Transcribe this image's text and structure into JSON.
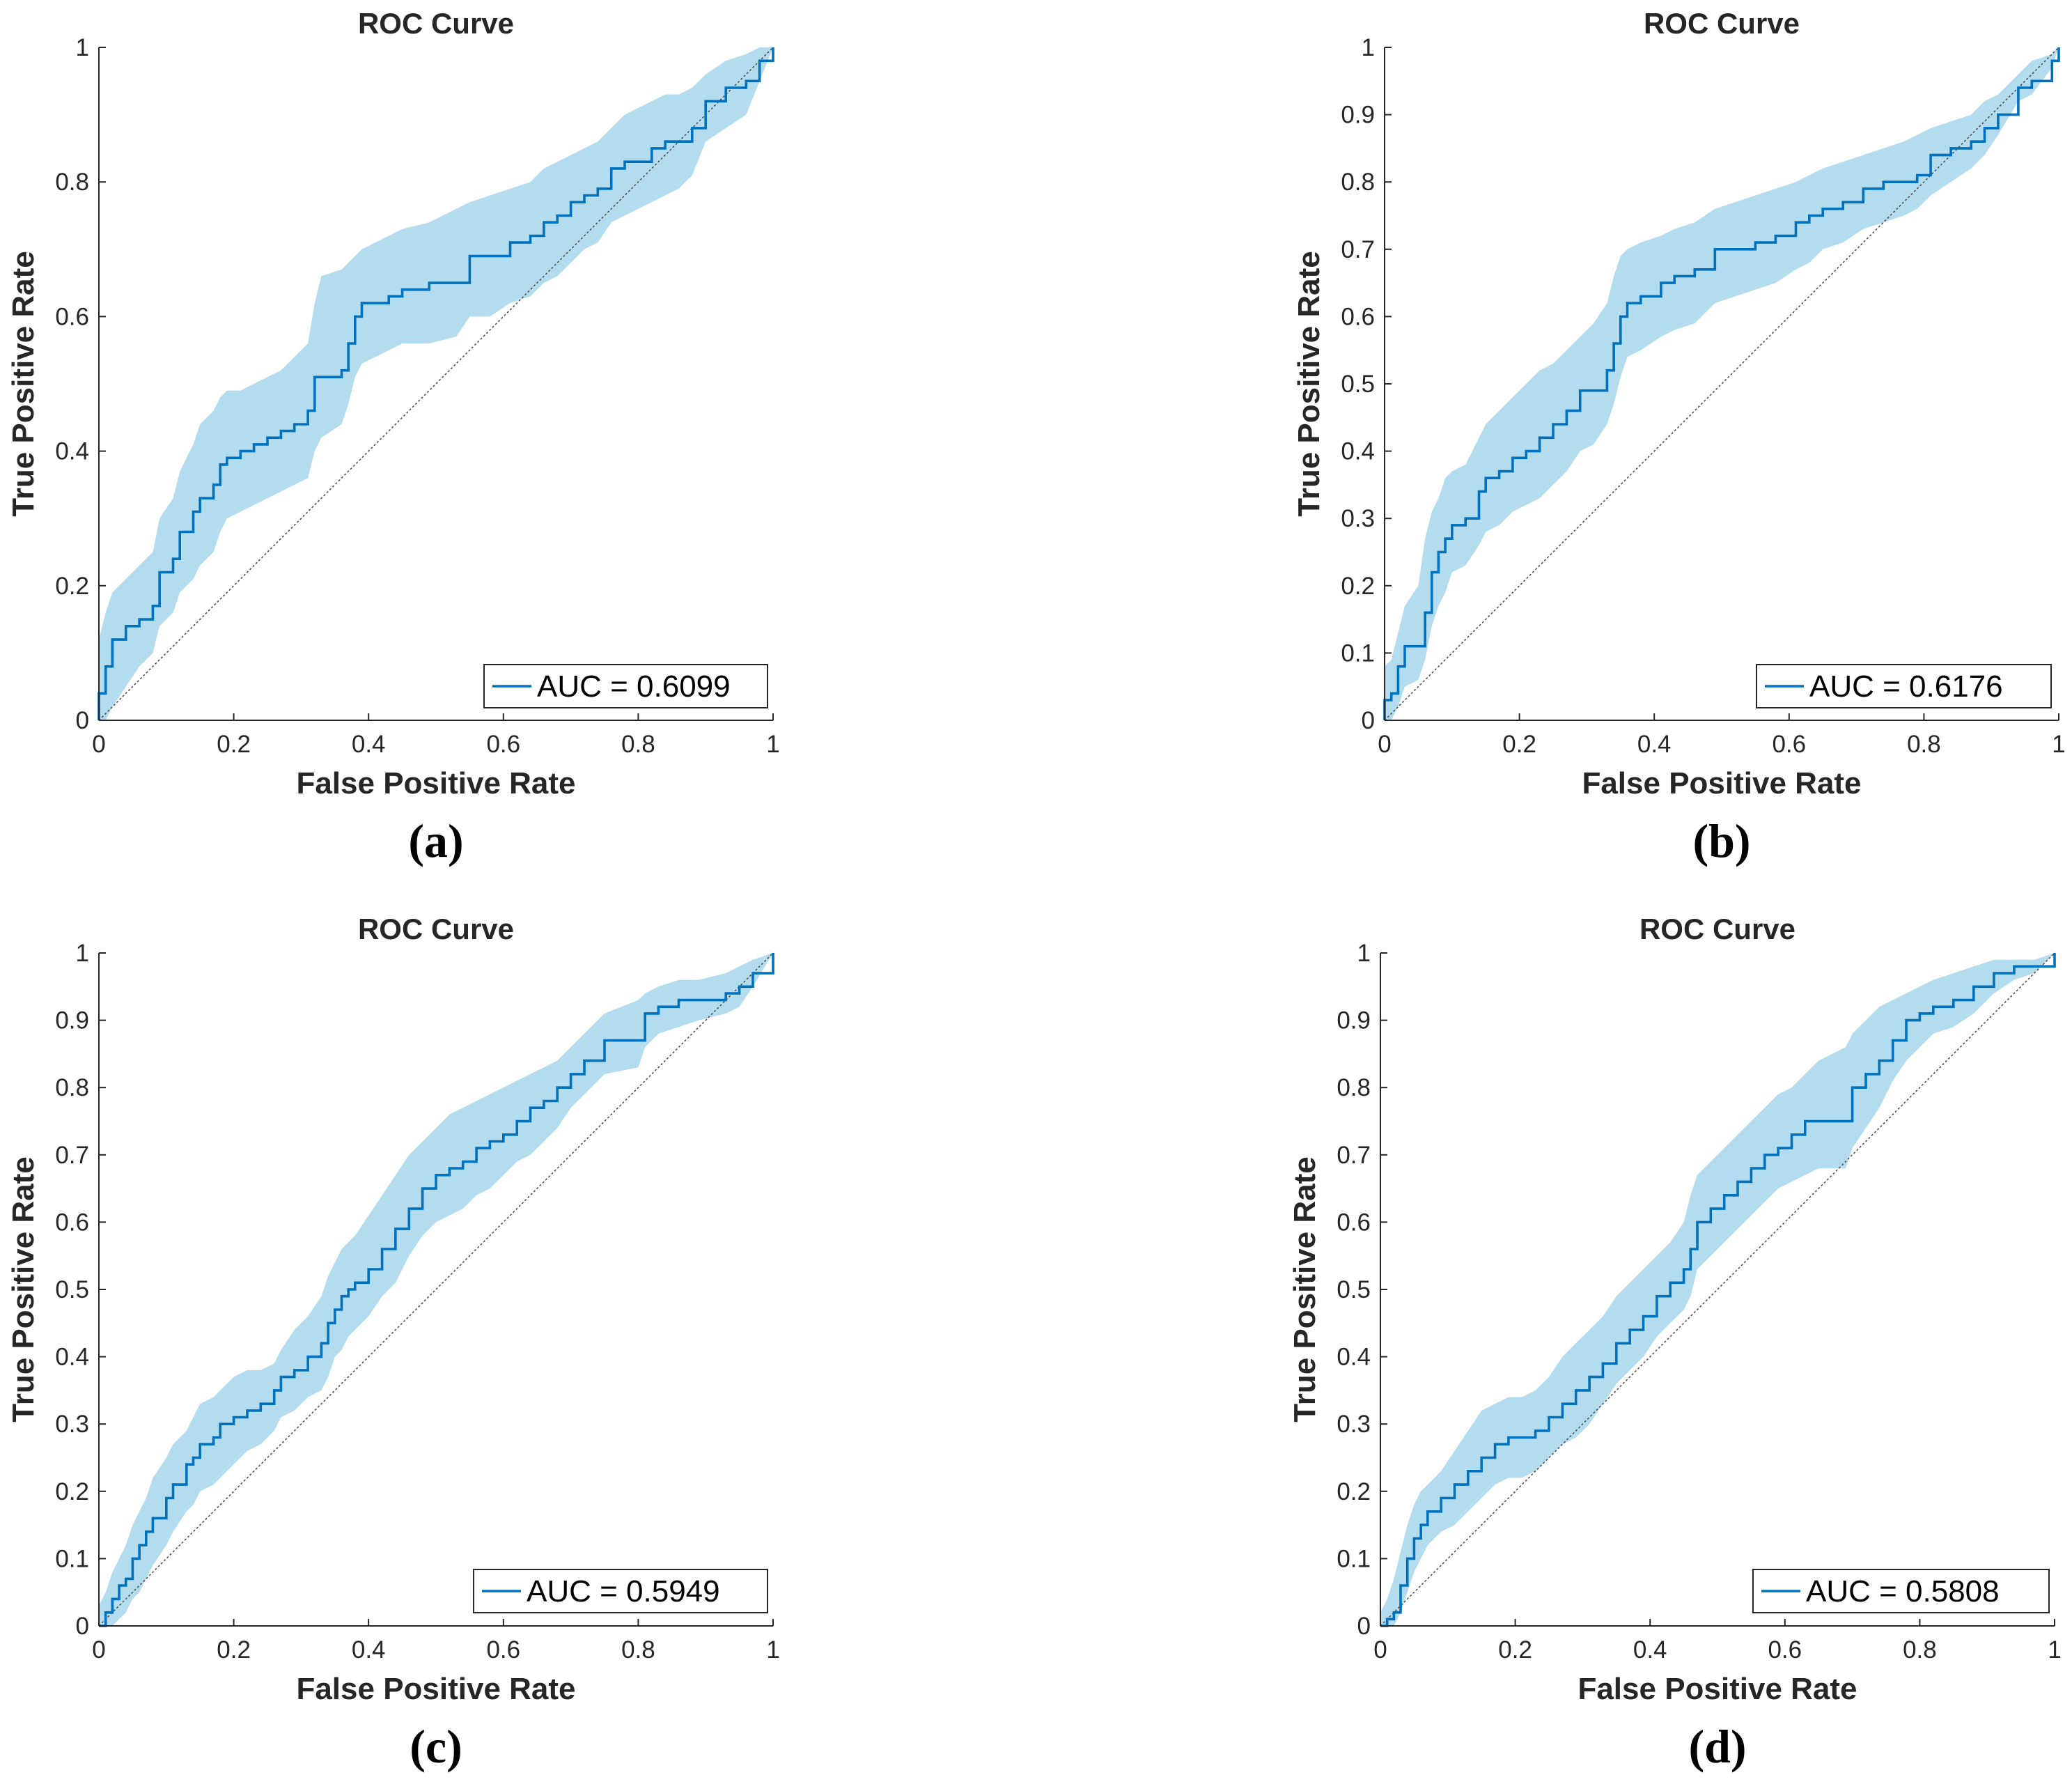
{
  "colors": {
    "curve": "#0072BD",
    "band": "#B4DCEF",
    "diagonal": "#4D4D4D",
    "axis": "#262626",
    "legend_border": "#262626"
  },
  "chart_data": [
    {
      "type": "line",
      "panel": "(a)",
      "title": "ROC Curve",
      "xlabel": "False Positive Rate",
      "ylabel": "True Positive Rate",
      "xlim": [
        0,
        1
      ],
      "ylim": [
        0,
        1
      ],
      "xticks": [
        0,
        0.2,
        0.4,
        0.6,
        0.8,
        1
      ],
      "xtick_labels": [
        "0",
        "0.2",
        "0.4",
        "0.6",
        "0.8",
        "1"
      ],
      "yticks": [
        0,
        0.2,
        0.4,
        0.6,
        0.8,
        1
      ],
      "ytick_labels": [
        "0",
        "0.2",
        "0.4",
        "0.6",
        "0.8",
        "1"
      ],
      "legend": "AUC = 0.6099",
      "legend_position": "bottom-right",
      "grid": false,
      "series": [
        {
          "name": "ROC",
          "x": [
            0,
            0,
            0.01,
            0.02,
            0.04,
            0.06,
            0.08,
            0.09,
            0.11,
            0.12,
            0.14,
            0.15,
            0.17,
            0.18,
            0.19,
            0.21,
            0.23,
            0.25,
            0.27,
            0.29,
            0.31,
            0.32,
            0.33,
            0.36,
            0.37,
            0.38,
            0.39,
            0.41,
            0.43,
            0.45,
            0.49,
            0.53,
            0.55,
            0.58,
            0.61,
            0.64,
            0.66,
            0.68,
            0.7,
            0.72,
            0.74,
            0.76,
            0.78,
            0.8,
            0.82,
            0.84,
            0.86,
            0.88,
            0.9,
            0.93,
            0.96,
            0.98,
            1
          ],
          "y": [
            0,
            0.04,
            0.08,
            0.12,
            0.14,
            0.15,
            0.17,
            0.22,
            0.24,
            0.28,
            0.31,
            0.33,
            0.35,
            0.38,
            0.39,
            0.4,
            0.41,
            0.42,
            0.43,
            0.44,
            0.46,
            0.51,
            0.51,
            0.52,
            0.56,
            0.6,
            0.62,
            0.62,
            0.63,
            0.64,
            0.65,
            0.65,
            0.69,
            0.69,
            0.71,
            0.72,
            0.74,
            0.75,
            0.77,
            0.78,
            0.79,
            0.82,
            0.83,
            0.83,
            0.85,
            0.86,
            0.86,
            0.88,
            0.92,
            0.94,
            0.95,
            0.98,
            1
          ],
          "upper": [
            0.08,
            0.12,
            0.16,
            0.19,
            0.21,
            0.23,
            0.25,
            0.3,
            0.33,
            0.37,
            0.41,
            0.44,
            0.46,
            0.48,
            0.49,
            0.49,
            0.5,
            0.51,
            0.52,
            0.54,
            0.56,
            0.62,
            0.66,
            0.67,
            0.68,
            0.69,
            0.7,
            0.71,
            0.72,
            0.73,
            0.74,
            0.76,
            0.77,
            0.78,
            0.79,
            0.8,
            0.82,
            0.83,
            0.84,
            0.85,
            0.86,
            0.88,
            0.9,
            0.91,
            0.92,
            0.93,
            0.93,
            0.94,
            0.96,
            0.98,
            0.99,
            1,
            1
          ],
          "lower": [
            0,
            0,
            0,
            0.02,
            0.05,
            0.08,
            0.1,
            0.14,
            0.16,
            0.19,
            0.21,
            0.23,
            0.25,
            0.28,
            0.3,
            0.31,
            0.32,
            0.33,
            0.34,
            0.35,
            0.36,
            0.4,
            0.42,
            0.44,
            0.47,
            0.51,
            0.53,
            0.54,
            0.55,
            0.56,
            0.56,
            0.57,
            0.6,
            0.6,
            0.62,
            0.63,
            0.65,
            0.66,
            0.68,
            0.7,
            0.71,
            0.74,
            0.75,
            0.76,
            0.77,
            0.78,
            0.79,
            0.81,
            0.86,
            0.88,
            0.9,
            0.95,
            1
          ]
        }
      ]
    },
    {
      "type": "line",
      "panel": "(b)",
      "title": "ROC Curve",
      "xlabel": "False Positive Rate",
      "ylabel": "True Positive Rate",
      "xlim": [
        0,
        1
      ],
      "ylim": [
        0,
        1
      ],
      "xticks": [
        0,
        0.2,
        0.4,
        0.6,
        0.8,
        1
      ],
      "xtick_labels": [
        "0",
        "0.2",
        "0.4",
        "0.6",
        "0.8",
        "1"
      ],
      "yticks": [
        0,
        0.1,
        0.2,
        0.3,
        0.4,
        0.5,
        0.6,
        0.7,
        0.8,
        0.9,
        1
      ],
      "ytick_labels": [
        "0",
        "0.1",
        "0.2",
        "0.3",
        "0.4",
        "0.5",
        "0.6",
        "0.7",
        "0.8",
        "0.9",
        "1"
      ],
      "legend": "AUC = 0.6176",
      "legend_position": "bottom-right",
      "grid": false,
      "series": [
        {
          "name": "ROC",
          "x": [
            0,
            0,
            0.01,
            0.02,
            0.03,
            0.05,
            0.06,
            0.07,
            0.08,
            0.09,
            0.1,
            0.12,
            0.14,
            0.15,
            0.17,
            0.19,
            0.21,
            0.23,
            0.25,
            0.27,
            0.29,
            0.31,
            0.33,
            0.34,
            0.35,
            0.36,
            0.38,
            0.41,
            0.43,
            0.46,
            0.49,
            0.52,
            0.55,
            0.58,
            0.61,
            0.63,
            0.65,
            0.68,
            0.71,
            0.74,
            0.77,
            0.79,
            0.81,
            0.84,
            0.87,
            0.89,
            0.91,
            0.94,
            0.96,
            0.99,
            1
          ],
          "y": [
            0,
            0.03,
            0.04,
            0.08,
            0.11,
            0.11,
            0.16,
            0.22,
            0.25,
            0.27,
            0.29,
            0.3,
            0.34,
            0.36,
            0.37,
            0.39,
            0.4,
            0.42,
            0.44,
            0.46,
            0.49,
            0.49,
            0.52,
            0.56,
            0.6,
            0.62,
            0.63,
            0.65,
            0.66,
            0.67,
            0.7,
            0.7,
            0.71,
            0.72,
            0.74,
            0.75,
            0.76,
            0.77,
            0.79,
            0.8,
            0.8,
            0.81,
            0.84,
            0.85,
            0.86,
            0.88,
            0.9,
            0.94,
            0.95,
            0.98,
            1
          ],
          "upper": [
            0.05,
            0.08,
            0.09,
            0.13,
            0.17,
            0.2,
            0.27,
            0.31,
            0.33,
            0.36,
            0.37,
            0.38,
            0.42,
            0.44,
            0.46,
            0.48,
            0.5,
            0.52,
            0.53,
            0.55,
            0.57,
            0.59,
            0.62,
            0.66,
            0.69,
            0.7,
            0.71,
            0.72,
            0.73,
            0.74,
            0.76,
            0.77,
            0.78,
            0.79,
            0.8,
            0.81,
            0.82,
            0.83,
            0.84,
            0.85,
            0.86,
            0.87,
            0.88,
            0.89,
            0.9,
            0.92,
            0.93,
            0.96,
            0.98,
            0.99,
            1
          ],
          "lower": [
            0,
            0,
            0,
            0.02,
            0.05,
            0.06,
            0.09,
            0.14,
            0.17,
            0.19,
            0.22,
            0.23,
            0.26,
            0.28,
            0.29,
            0.31,
            0.32,
            0.33,
            0.35,
            0.37,
            0.4,
            0.41,
            0.44,
            0.47,
            0.51,
            0.54,
            0.55,
            0.57,
            0.58,
            0.59,
            0.62,
            0.63,
            0.64,
            0.65,
            0.67,
            0.68,
            0.7,
            0.71,
            0.73,
            0.74,
            0.75,
            0.76,
            0.78,
            0.8,
            0.82,
            0.84,
            0.87,
            0.92,
            0.93,
            0.97,
            1
          ]
        }
      ]
    },
    {
      "type": "line",
      "panel": "(c)",
      "title": "ROC Curve",
      "xlabel": "False Positive Rate",
      "ylabel": "True Positive Rate",
      "xlim": [
        0,
        1
      ],
      "ylim": [
        0,
        1
      ],
      "xticks": [
        0,
        0.2,
        0.4,
        0.6,
        0.8,
        1
      ],
      "xtick_labels": [
        "0",
        "0.2",
        "0.4",
        "0.6",
        "0.8",
        "1"
      ],
      "yticks": [
        0,
        0.1,
        0.2,
        0.3,
        0.4,
        0.5,
        0.6,
        0.7,
        0.8,
        0.9,
        1
      ],
      "ytick_labels": [
        "0",
        "0.1",
        "0.2",
        "0.3",
        "0.4",
        "0.5",
        "0.6",
        "0.7",
        "0.8",
        "0.9",
        "1"
      ],
      "legend": "AUC = 0.5949",
      "legend_position": "bottom-right",
      "grid": false,
      "series": [
        {
          "name": "ROC",
          "x": [
            0,
            0.01,
            0.02,
            0.03,
            0.04,
            0.05,
            0.06,
            0.07,
            0.08,
            0.1,
            0.11,
            0.13,
            0.14,
            0.15,
            0.17,
            0.18,
            0.2,
            0.22,
            0.24,
            0.26,
            0.27,
            0.29,
            0.31,
            0.33,
            0.34,
            0.35,
            0.36,
            0.37,
            0.38,
            0.4,
            0.42,
            0.44,
            0.46,
            0.48,
            0.5,
            0.52,
            0.54,
            0.56,
            0.58,
            0.6,
            0.62,
            0.64,
            0.66,
            0.68,
            0.7,
            0.72,
            0.75,
            0.8,
            0.81,
            0.83,
            0.86,
            0.89,
            0.93,
            0.95,
            0.97,
            1
          ],
          "y": [
            0,
            0.02,
            0.04,
            0.06,
            0.07,
            0.1,
            0.12,
            0.14,
            0.16,
            0.19,
            0.21,
            0.24,
            0.25,
            0.27,
            0.28,
            0.3,
            0.31,
            0.32,
            0.33,
            0.35,
            0.37,
            0.38,
            0.4,
            0.42,
            0.45,
            0.47,
            0.49,
            0.5,
            0.51,
            0.53,
            0.56,
            0.59,
            0.62,
            0.65,
            0.67,
            0.68,
            0.69,
            0.71,
            0.72,
            0.73,
            0.75,
            0.77,
            0.78,
            0.8,
            0.82,
            0.84,
            0.87,
            0.87,
            0.91,
            0.92,
            0.93,
            0.93,
            0.94,
            0.95,
            0.97,
            1
          ],
          "upper": [
            0.03,
            0.05,
            0.08,
            0.1,
            0.12,
            0.15,
            0.17,
            0.19,
            0.22,
            0.25,
            0.27,
            0.29,
            0.31,
            0.33,
            0.34,
            0.35,
            0.37,
            0.38,
            0.38,
            0.39,
            0.41,
            0.44,
            0.46,
            0.49,
            0.52,
            0.54,
            0.56,
            0.57,
            0.58,
            0.61,
            0.64,
            0.67,
            0.7,
            0.72,
            0.74,
            0.76,
            0.77,
            0.78,
            0.79,
            0.8,
            0.81,
            0.82,
            0.83,
            0.84,
            0.86,
            0.88,
            0.91,
            0.93,
            0.94,
            0.95,
            0.96,
            0.96,
            0.97,
            0.98,
            0.99,
            1
          ],
          "lower": [
            0,
            0,
            0,
            0.01,
            0.02,
            0.04,
            0.05,
            0.07,
            0.09,
            0.12,
            0.14,
            0.17,
            0.18,
            0.2,
            0.21,
            0.22,
            0.24,
            0.26,
            0.27,
            0.29,
            0.31,
            0.32,
            0.34,
            0.35,
            0.37,
            0.4,
            0.41,
            0.43,
            0.44,
            0.46,
            0.49,
            0.51,
            0.55,
            0.58,
            0.6,
            0.61,
            0.62,
            0.64,
            0.65,
            0.67,
            0.69,
            0.7,
            0.72,
            0.74,
            0.77,
            0.79,
            0.82,
            0.83,
            0.86,
            0.88,
            0.89,
            0.9,
            0.91,
            0.92,
            0.95,
            1
          ]
        }
      ]
    },
    {
      "type": "line",
      "panel": "(d)",
      "title": "ROC Curve",
      "xlabel": "False Positive Rate",
      "ylabel": "True Positive Rate",
      "xlim": [
        0,
        1
      ],
      "ylim": [
        0,
        1
      ],
      "xticks": [
        0,
        0.2,
        0.4,
        0.6,
        0.8,
        1
      ],
      "xtick_labels": [
        "0",
        "0.2",
        "0.4",
        "0.6",
        "0.8",
        "1"
      ],
      "yticks": [
        0,
        0.1,
        0.2,
        0.3,
        0.4,
        0.5,
        0.6,
        0.7,
        0.8,
        0.9,
        1
      ],
      "ytick_labels": [
        "0",
        "0.1",
        "0.2",
        "0.3",
        "0.4",
        "0.5",
        "0.6",
        "0.7",
        "0.8",
        "0.9",
        "1"
      ],
      "legend": "AUC = 0.5808",
      "legend_position": "bottom-right",
      "grid": false,
      "series": [
        {
          "name": "ROC",
          "x": [
            0,
            0.01,
            0.02,
            0.03,
            0.04,
            0.05,
            0.06,
            0.07,
            0.09,
            0.11,
            0.13,
            0.15,
            0.17,
            0.19,
            0.21,
            0.23,
            0.25,
            0.27,
            0.29,
            0.31,
            0.33,
            0.35,
            0.37,
            0.39,
            0.41,
            0.43,
            0.45,
            0.46,
            0.47,
            0.49,
            0.51,
            0.53,
            0.55,
            0.57,
            0.59,
            0.61,
            0.63,
            0.65,
            0.69,
            0.7,
            0.72,
            0.74,
            0.76,
            0.78,
            0.8,
            0.82,
            0.85,
            0.88,
            0.91,
            0.94,
            0.97,
            1
          ],
          "y": [
            0,
            0.01,
            0.02,
            0.06,
            0.1,
            0.13,
            0.15,
            0.17,
            0.19,
            0.21,
            0.23,
            0.25,
            0.27,
            0.28,
            0.28,
            0.29,
            0.31,
            0.33,
            0.35,
            0.37,
            0.39,
            0.42,
            0.44,
            0.46,
            0.49,
            0.51,
            0.53,
            0.56,
            0.6,
            0.62,
            0.64,
            0.66,
            0.68,
            0.7,
            0.71,
            0.73,
            0.75,
            0.75,
            0.75,
            0.8,
            0.82,
            0.84,
            0.87,
            0.9,
            0.91,
            0.92,
            0.93,
            0.95,
            0.97,
            0.98,
            0.98,
            1
          ],
          "upper": [
            0.02,
            0.04,
            0.07,
            0.11,
            0.15,
            0.18,
            0.2,
            0.21,
            0.23,
            0.26,
            0.29,
            0.32,
            0.33,
            0.34,
            0.34,
            0.35,
            0.37,
            0.4,
            0.42,
            0.44,
            0.46,
            0.49,
            0.51,
            0.53,
            0.55,
            0.57,
            0.6,
            0.64,
            0.67,
            0.69,
            0.71,
            0.73,
            0.75,
            0.77,
            0.79,
            0.8,
            0.82,
            0.84,
            0.86,
            0.88,
            0.9,
            0.92,
            0.93,
            0.94,
            0.95,
            0.96,
            0.97,
            0.98,
            0.99,
            0.99,
            0.99,
            1
          ],
          "lower": [
            0,
            0,
            0,
            0.02,
            0.05,
            0.08,
            0.1,
            0.12,
            0.14,
            0.15,
            0.17,
            0.19,
            0.21,
            0.22,
            0.22,
            0.23,
            0.25,
            0.27,
            0.28,
            0.3,
            0.33,
            0.36,
            0.38,
            0.4,
            0.43,
            0.45,
            0.47,
            0.49,
            0.53,
            0.55,
            0.57,
            0.59,
            0.61,
            0.63,
            0.65,
            0.66,
            0.67,
            0.68,
            0.68,
            0.71,
            0.74,
            0.77,
            0.81,
            0.84,
            0.86,
            0.88,
            0.89,
            0.91,
            0.94,
            0.96,
            0.97,
            1
          ]
        }
      ]
    }
  ]
}
